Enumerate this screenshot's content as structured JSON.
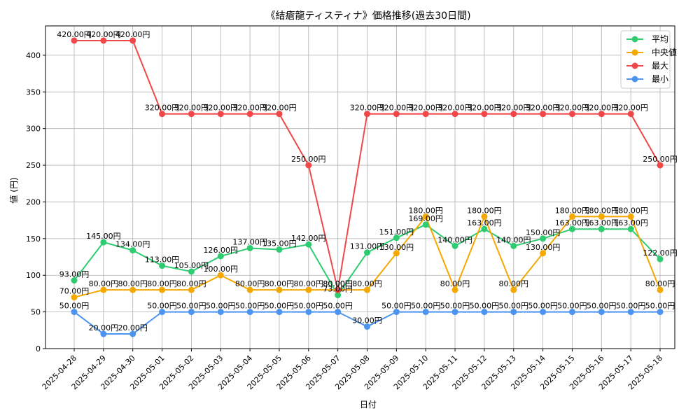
{
  "chart_data": {
    "type": "line",
    "title": "《結瘡龍ティスティナ》価格推移(過去30日間)",
    "xlabel": "日付",
    "ylabel": "値 (円)",
    "ylim": [
      0,
      440
    ],
    "yticks": [
      0,
      50,
      100,
      150,
      200,
      250,
      300,
      350,
      400
    ],
    "grid": true,
    "legend_position": "top-right",
    "value_suffix": "円",
    "categories": [
      "2025-04-28",
      "2025-04-29",
      "2025-04-30",
      "2025-05-01",
      "2025-05-02",
      "2025-05-03",
      "2025-05-04",
      "2025-05-05",
      "2025-05-06",
      "2025-05-07",
      "2025-05-08",
      "2025-05-09",
      "2025-05-10",
      "2025-05-11",
      "2025-05-12",
      "2025-05-13",
      "2025-05-14",
      "2025-05-15",
      "2025-05-16",
      "2025-05-17",
      "2025-05-18"
    ],
    "series": [
      {
        "name": "平均",
        "color": "#2ecc71",
        "values": [
          93,
          145,
          134,
          113,
          105,
          126,
          137,
          135,
          142,
          73,
          131,
          151,
          169,
          140,
          163,
          140,
          150,
          163,
          163,
          163,
          122
        ]
      },
      {
        "name": "中央値",
        "color": "#f5a800",
        "values": [
          70,
          80,
          80,
          80,
          80,
          100,
          80,
          80,
          80,
          80,
          80,
          130,
          180,
          80,
          180,
          80,
          130,
          180,
          180,
          180,
          80
        ]
      },
      {
        "name": "最大",
        "color": "#f04848",
        "values": [
          420,
          420,
          420,
          320,
          320,
          320,
          320,
          320,
          250,
          80,
          320,
          320,
          320,
          320,
          320,
          320,
          320,
          320,
          320,
          320,
          250
        ]
      },
      {
        "name": "最小",
        "color": "#4d94f0",
        "values": [
          50,
          20,
          20,
          50,
          50,
          50,
          50,
          50,
          50,
          50,
          30,
          50,
          50,
          50,
          50,
          50,
          50,
          50,
          50,
          50,
          50
        ]
      }
    ]
  }
}
